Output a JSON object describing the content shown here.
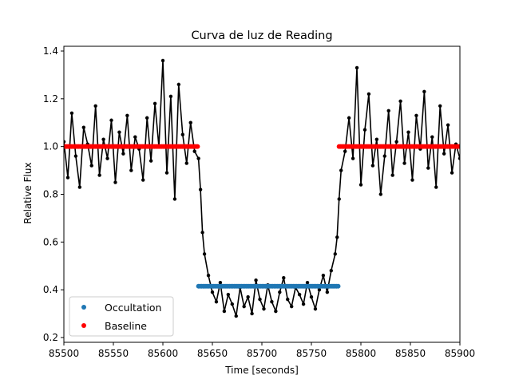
{
  "chart_data": {
    "type": "scatter",
    "title": "Curva de luz de Reading",
    "xlabel": "Time [seconds]",
    "ylabel": "Relative Flux",
    "xlim": [
      85500,
      85900
    ],
    "ylim": [
      0.18,
      1.42
    ],
    "xticks": [
      85500,
      85550,
      85600,
      85650,
      85700,
      85750,
      85800,
      85850,
      85900
    ],
    "yticks": [
      "0.2",
      "0.4",
      "0.6",
      "0.8",
      "1.0",
      "1.2",
      "1.4"
    ],
    "grid": false,
    "legend_position": "lower-left",
    "colors": {
      "data": "#000000",
      "occultation": "#1f77b4",
      "baseline": "#ff0000"
    },
    "series": [
      {
        "name": "Occultation",
        "style": "points",
        "color": "#1f77b4",
        "x_range": [
          85636,
          85777
        ],
        "value": 0.415
      },
      {
        "name": "Baseline",
        "style": "points",
        "color": "#ff0000",
        "segments": [
          [
            85500,
            85635
          ],
          [
            85778,
            85900
          ]
        ],
        "value": 1.0
      },
      {
        "style": "line+points",
        "color": "#000000",
        "x": [
          85500,
          85504,
          85508,
          85512,
          85516,
          85520,
          85524,
          85528,
          85532,
          85536,
          85540,
          85544,
          85548,
          85552,
          85556,
          85560,
          85564,
          85568,
          85572,
          85576,
          85580,
          85584,
          85588,
          85592,
          85596,
          85600,
          85604,
          85608,
          85612,
          85616,
          85620,
          85624,
          85628,
          85632,
          85636,
          85638,
          85640,
          85642,
          85646,
          85650,
          85654,
          85658,
          85662,
          85666,
          85670,
          85674,
          85678,
          85682,
          85686,
          85690,
          85694,
          85698,
          85702,
          85706,
          85710,
          85714,
          85718,
          85722,
          85726,
          85730,
          85734,
          85738,
          85742,
          85746,
          85750,
          85754,
          85758,
          85762,
          85766,
          85770,
          85774,
          85776,
          85778,
          85780,
          85784,
          85788,
          85792,
          85796,
          85800,
          85804,
          85808,
          85812,
          85816,
          85820,
          85824,
          85828,
          85832,
          85836,
          85840,
          85844,
          85848,
          85852,
          85856,
          85860,
          85864,
          85868,
          85872,
          85876,
          85880,
          85884,
          85888,
          85892,
          85896,
          85900
        ],
        "y": [
          1.02,
          0.87,
          1.14,
          0.96,
          0.83,
          1.08,
          1.01,
          0.92,
          1.17,
          0.88,
          1.03,
          0.95,
          1.11,
          0.85,
          1.06,
          0.97,
          1.13,
          0.9,
          1.04,
          0.99,
          0.86,
          1.12,
          0.94,
          1.18,
          1.0,
          1.36,
          0.89,
          1.21,
          0.78,
          1.26,
          1.05,
          0.93,
          1.1,
          0.98,
          0.95,
          0.82,
          0.64,
          0.55,
          0.46,
          0.39,
          0.35,
          0.43,
          0.31,
          0.38,
          0.34,
          0.29,
          0.41,
          0.33,
          0.37,
          0.3,
          0.44,
          0.36,
          0.32,
          0.42,
          0.35,
          0.31,
          0.39,
          0.45,
          0.36,
          0.33,
          0.41,
          0.38,
          0.34,
          0.43,
          0.37,
          0.32,
          0.4,
          0.46,
          0.39,
          0.48,
          0.55,
          0.62,
          0.78,
          0.9,
          0.98,
          1.12,
          0.95,
          1.33,
          0.84,
          1.07,
          1.22,
          0.92,
          1.03,
          0.8,
          0.96,
          1.15,
          0.88,
          1.02,
          1.19,
          0.93,
          1.06,
          0.86,
          1.13,
          0.99,
          1.23,
          0.91,
          1.04,
          0.83,
          1.17,
          0.97,
          1.09,
          0.89,
          1.01,
          0.95
        ]
      }
    ]
  }
}
